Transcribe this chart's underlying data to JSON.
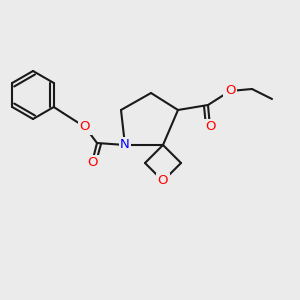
{
  "background_color": "#ebebeb",
  "bond_color": "#1a1a1a",
  "bond_width": 1.5,
  "atom_colors": {
    "N": "#0000ff",
    "O": "#ff0000",
    "C": "#1a1a1a"
  },
  "font_size": 8.5
}
